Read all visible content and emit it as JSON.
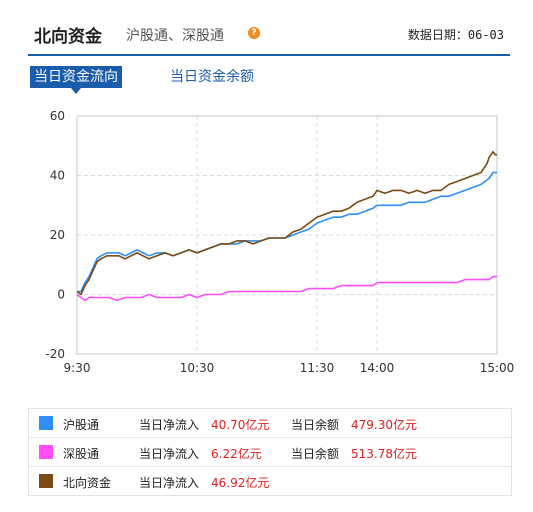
{
  "header": {
    "title": "北向资金",
    "subtitle": "沪股通、深股通",
    "date_label": "数据日期：06-03"
  },
  "tabs": [
    {
      "label": "当日资金流向",
      "active": true
    },
    {
      "label": "当日资金余额",
      "active": false
    }
  ],
  "legend": [
    {
      "name": "沪股通",
      "color": "#2f8ff5",
      "inflow_label": "当日净流入",
      "inflow_value": "40.70亿元",
      "balance_label": "当日余额",
      "balance_value": "479.30亿元"
    },
    {
      "name": "深股通",
      "color": "#ff4dff",
      "inflow_label": "当日净流入",
      "inflow_value": "6.22亿元",
      "balance_label": "当日余额",
      "balance_value": "513.78亿元"
    },
    {
      "name": "北向资金",
      "color": "#7a4a12",
      "inflow_label": "当日净流入",
      "inflow_value": "46.92亿元",
      "balance_label": "",
      "balance_value": ""
    }
  ],
  "chart_data": {
    "type": "line",
    "x_ticks": [
      "9:30",
      "10:30",
      "11:30",
      "14:00",
      "15:00"
    ],
    "x_tick_minutes": [
      0,
      60,
      120,
      150,
      210
    ],
    "y_ticks": [
      -20,
      0,
      20,
      40,
      60
    ],
    "ylim": [
      -20,
      60
    ],
    "xlim": [
      0,
      210
    ],
    "grid": true,
    "series": [
      {
        "name": "沪股通",
        "color": "#2f8ff5",
        "x": [
          0,
          2,
          4,
          6,
          8,
          10,
          12,
          15,
          18,
          21,
          24,
          27,
          30,
          33,
          36,
          40,
          44,
          48,
          52,
          56,
          60,
          64,
          68,
          72,
          76,
          80,
          84,
          88,
          92,
          96,
          100,
          104,
          108,
          112,
          116,
          120,
          124,
          128,
          132,
          136,
          140,
          144,
          148,
          150,
          154,
          158,
          162,
          166,
          170,
          174,
          178,
          182,
          186,
          190,
          194,
          198,
          202,
          206,
          208,
          210
        ],
        "y": [
          1,
          1,
          4,
          6,
          9,
          12,
          13,
          14,
          14,
          14,
          13,
          14,
          15,
          14,
          13,
          14,
          14,
          13,
          14,
          15,
          14,
          15,
          16,
          17,
          17,
          17,
          18,
          18,
          18,
          19,
          19,
          19,
          20,
          21,
          22,
          24,
          25,
          26,
          26,
          27,
          27,
          28,
          29,
          30,
          30,
          30,
          30,
          31,
          31,
          31,
          32,
          33,
          33,
          34,
          35,
          36,
          37,
          39,
          41,
          41
        ]
      },
      {
        "name": "深股通",
        "color": "#ff4dff",
        "x": [
          0,
          2,
          4,
          6,
          8,
          12,
          16,
          20,
          24,
          28,
          32,
          36,
          40,
          44,
          48,
          52,
          56,
          60,
          64,
          68,
          72,
          76,
          80,
          84,
          88,
          92,
          96,
          100,
          104,
          108,
          112,
          116,
          120,
          124,
          128,
          132,
          136,
          140,
          144,
          148,
          150,
          154,
          158,
          162,
          166,
          170,
          174,
          178,
          182,
          186,
          190,
          194,
          198,
          202,
          206,
          208,
          210
        ],
        "y": [
          0,
          -1,
          -2,
          -1,
          -1,
          -1,
          -1,
          -2,
          -1,
          -1,
          -1,
          0,
          -1,
          -1,
          -1,
          -1,
          0,
          -1,
          0,
          0,
          0,
          1,
          1,
          1,
          1,
          1,
          1,
          1,
          1,
          1,
          1,
          2,
          2,
          2,
          2,
          3,
          3,
          3,
          3,
          3,
          4,
          4,
          4,
          4,
          4,
          4,
          4,
          4,
          4,
          4,
          4,
          5,
          5,
          5,
          5,
          6,
          6
        ]
      },
      {
        "name": "北向资金",
        "color": "#7a4a12",
        "x": [
          0,
          2,
          4,
          6,
          8,
          10,
          12,
          15,
          18,
          21,
          24,
          27,
          30,
          33,
          36,
          40,
          44,
          48,
          52,
          56,
          60,
          64,
          68,
          72,
          76,
          80,
          84,
          88,
          92,
          96,
          100,
          104,
          108,
          112,
          116,
          120,
          124,
          128,
          132,
          136,
          140,
          144,
          148,
          150,
          154,
          158,
          162,
          166,
          170,
          174,
          178,
          182,
          186,
          190,
          194,
          198,
          202,
          205,
          206,
          208,
          209,
          210
        ],
        "y": [
          1,
          0,
          3,
          5,
          8,
          11,
          12,
          13,
          13,
          13,
          12,
          13,
          14,
          13,
          12,
          13,
          14,
          13,
          14,
          15,
          14,
          15,
          16,
          17,
          17,
          18,
          18,
          17,
          18,
          19,
          19,
          19,
          21,
          22,
          24,
          26,
          27,
          28,
          28,
          29,
          31,
          32,
          33,
          35,
          34,
          35,
          35,
          34,
          35,
          34,
          35,
          35,
          37,
          38,
          39,
          40,
          41,
          44,
          46,
          48,
          47,
          47
        ]
      }
    ]
  }
}
